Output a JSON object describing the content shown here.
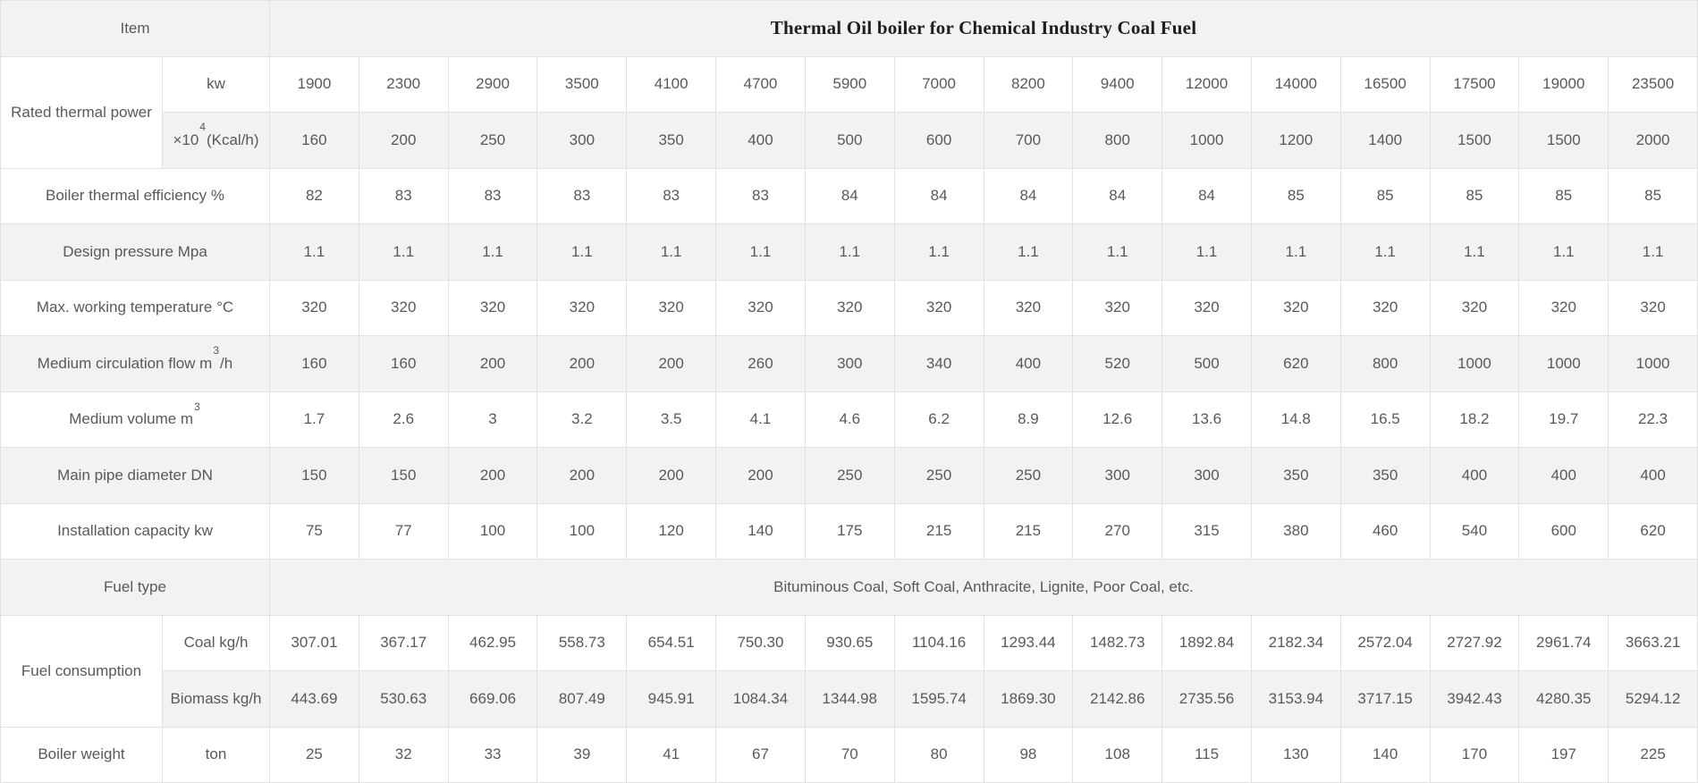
{
  "table": {
    "rows": [
      {
        "kind": "title",
        "label": "Item",
        "value": "Thermal Oil boiler for Chemical Industry Coal Fuel"
      },
      {
        "kind": "group",
        "label": "Rated thermal power",
        "subrows": [
          {
            "unit": "kw",
            "values": [
              "1900",
              "2300",
              "2900",
              "3500",
              "4100",
              "4700",
              "5900",
              "7000",
              "8200",
              "9400",
              "12000",
              "14000",
              "16500",
              "17500",
              "19000",
              "23500"
            ]
          },
          {
            "unit": {
              "pre": "×10",
              "sup": "4",
              "suf": "(Kcal/h)"
            },
            "values": [
              "160",
              "200",
              "250",
              "300",
              "350",
              "400",
              "500",
              "600",
              "700",
              "800",
              "1000",
              "1200",
              "1400",
              "1500",
              "1500",
              "2000"
            ]
          }
        ]
      },
      {
        "kind": "span",
        "label": "Boiler thermal efficiency %",
        "values": [
          "82",
          "83",
          "83",
          "83",
          "83",
          "83",
          "84",
          "84",
          "84",
          "84",
          "84",
          "85",
          "85",
          "85",
          "85",
          "85"
        ]
      },
      {
        "kind": "span",
        "label": "Design pressure Mpa",
        "values": [
          "1.1",
          "1.1",
          "1.1",
          "1.1",
          "1.1",
          "1.1",
          "1.1",
          "1.1",
          "1.1",
          "1.1",
          "1.1",
          "1.1",
          "1.1",
          "1.1",
          "1.1",
          "1.1"
        ]
      },
      {
        "kind": "span",
        "label": "Max. working temperature °C",
        "values": [
          "320",
          "320",
          "320",
          "320",
          "320",
          "320",
          "320",
          "320",
          "320",
          "320",
          "320",
          "320",
          "320",
          "320",
          "320",
          "320"
        ]
      },
      {
        "kind": "span",
        "label": {
          "pre": "Medium circulation flow m",
          "sup": "3",
          "suf": "/h"
        },
        "values": [
          "160",
          "160",
          "200",
          "200",
          "200",
          "260",
          "300",
          "340",
          "400",
          "520",
          "500",
          "620",
          "800",
          "1000",
          "1000",
          "1000"
        ]
      },
      {
        "kind": "span",
        "label": {
          "pre": "Medium volume m",
          "sup": "3",
          "suf": ""
        },
        "values": [
          "1.7",
          "2.6",
          "3",
          "3.2",
          "3.5",
          "4.1",
          "4.6",
          "6.2",
          "8.9",
          "12.6",
          "13.6",
          "14.8",
          "16.5",
          "18.2",
          "19.7",
          "22.3"
        ]
      },
      {
        "kind": "span",
        "label": "Main pipe diameter DN",
        "values": [
          "150",
          "150",
          "200",
          "200",
          "200",
          "200",
          "250",
          "250",
          "250",
          "300",
          "300",
          "350",
          "350",
          "400",
          "400",
          "400"
        ]
      },
      {
        "kind": "span",
        "label": "Installation capacity kw",
        "values": [
          "75",
          "77",
          "100",
          "100",
          "120",
          "140",
          "175",
          "215",
          "215",
          "270",
          "315",
          "380",
          "460",
          "540",
          "600",
          "620"
        ]
      },
      {
        "kind": "fullspan",
        "label": "Fuel type",
        "value": "Bituminous Coal, Soft Coal, Anthracite, Lignite, Poor Coal, etc."
      },
      {
        "kind": "group",
        "label": "Fuel consumption",
        "subrows": [
          {
            "unit": "Coal kg/h",
            "values": [
              "307.01",
              "367.17",
              "462.95",
              "558.73",
              "654.51",
              "750.30",
              "930.65",
              "1104.16",
              "1293.44",
              "1482.73",
              "1892.84",
              "2182.34",
              "2572.04",
              "2727.92",
              "2961.74",
              "3663.21"
            ]
          },
          {
            "unit": "Biomass kg/h",
            "values": [
              "443.69",
              "530.63",
              "669.06",
              "807.49",
              "945.91",
              "1084.34",
              "1344.98",
              "1595.74",
              "1869.30",
              "2142.86",
              "2735.56",
              "3153.94",
              "3717.15",
              "3942.43",
              "4280.35",
              "5294.12"
            ]
          }
        ]
      },
      {
        "kind": "unitrow",
        "label": "Boiler weight",
        "unit": "ton",
        "values": [
          "25",
          "32",
          "33",
          "39",
          "41",
          "67",
          "70",
          "80",
          "98",
          "108",
          "115",
          "130",
          "140",
          "170",
          "197",
          "225"
        ]
      }
    ]
  },
  "colors": {
    "stripe": "#f2f2f3",
    "border": "#e2e2e2",
    "text": "#58595b",
    "title_text": "#1f1f1f"
  }
}
